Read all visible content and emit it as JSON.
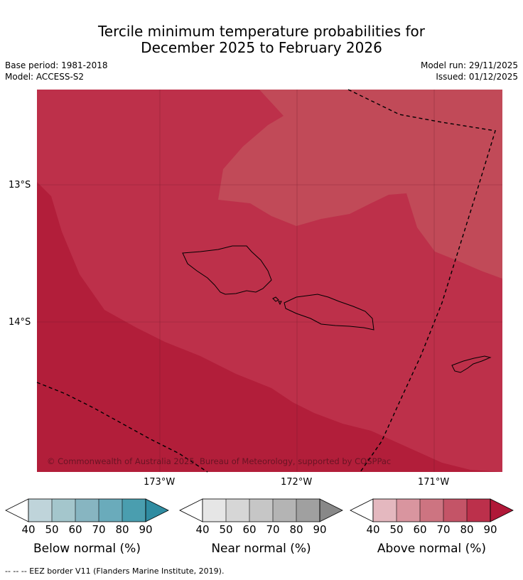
{
  "title": {
    "line1": "Tercile minimum temperature probabilities for",
    "line2": "December 2025 to February 2026"
  },
  "meta": {
    "base_period": "Base period: 1981-2018",
    "model": "Model: ACCESS-S2",
    "model_run": "Model run: 29/11/2025",
    "issued": "Issued: 01/12/2025"
  },
  "map": {
    "lat_labels": [
      "13°S",
      "14°S"
    ],
    "lon_labels": [
      "173°W",
      "172°W",
      "171°W"
    ],
    "copyright": "© Commonwealth of Australia 2025, Bureau of Meteorology, supported by COSPPac",
    "zone_colors": {
      "z90": "#b21e3a",
      "z80": "#bd304a",
      "z70": "#c14a58"
    }
  },
  "colorbars": [
    {
      "name": "Below normal (%)",
      "ticks": [
        "40",
        "50",
        "60",
        "70",
        "80",
        "90"
      ],
      "colors": [
        "#bfd4da",
        "#a4c6cc",
        "#87b5c1",
        "#6aabbb",
        "#4a9eaf",
        "#2f8ca1"
      ]
    },
    {
      "name": "Near normal (%)",
      "ticks": [
        "40",
        "50",
        "60",
        "70",
        "80",
        "90"
      ],
      "colors": [
        "#e6e6e6",
        "#d6d6d6",
        "#c6c6c6",
        "#b4b4b4",
        "#a0a0a0",
        "#888888"
      ]
    },
    {
      "name": "Above normal (%)",
      "ticks": [
        "40",
        "50",
        "60",
        "70",
        "80",
        "90"
      ],
      "colors": [
        "#e4b8bf",
        "#d9959f",
        "#cd7481",
        "#c45467",
        "#bc304b",
        "#b01838"
      ]
    }
  ],
  "footer": "--  --  -- EEZ border V11 (Flanders Marine Institute, 2019)."
}
